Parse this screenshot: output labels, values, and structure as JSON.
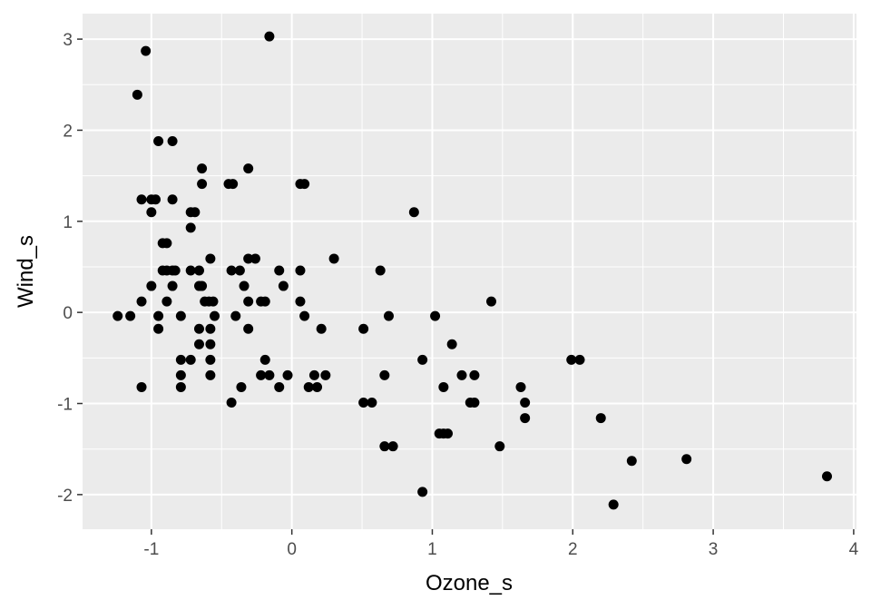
{
  "chart_data": {
    "type": "scatter",
    "title": "",
    "xlabel": "Ozone_s",
    "ylabel": "Wind_s",
    "xlim": [
      -1.49,
      4.02
    ],
    "ylim": [
      -2.38,
      3.28
    ],
    "x_ticks": [
      -1,
      0,
      1,
      2,
      3,
      4
    ],
    "x_tick_labels": [
      "-1",
      "0",
      "1",
      "2",
      "3",
      "4"
    ],
    "y_ticks": [
      -2,
      -1,
      0,
      1,
      2,
      3
    ],
    "y_tick_labels": [
      "-2",
      "-1",
      "0",
      "1",
      "2",
      "3"
    ],
    "grid": true,
    "legend": "none",
    "colors": {
      "panel": "#ebebeb",
      "grid": "#ffffff",
      "point": "#000000"
    },
    "points": [
      [
        -1.24,
        -0.04
      ],
      [
        -1.15,
        -0.04
      ],
      [
        -1.1,
        2.39
      ],
      [
        -1.04,
        2.87
      ],
      [
        -1.07,
        1.24
      ],
      [
        -1.0,
        1.24
      ],
      [
        -0.97,
        1.24
      ],
      [
        -1.0,
        1.1
      ],
      [
        -1.07,
        0.12
      ],
      [
        -1.0,
        0.29
      ],
      [
        -1.07,
        -0.82
      ],
      [
        -0.95,
        1.88
      ],
      [
        -0.85,
        1.88
      ],
      [
        -0.92,
        0.76
      ],
      [
        -0.89,
        0.76
      ],
      [
        -0.92,
        0.46
      ],
      [
        -0.89,
        0.46
      ],
      [
        -0.85,
        0.46
      ],
      [
        -0.83,
        0.46
      ],
      [
        -0.89,
        0.12
      ],
      [
        -0.85,
        0.29
      ],
      [
        -0.95,
        -0.04
      ],
      [
        -0.95,
        -0.18
      ],
      [
        -0.85,
        1.24
      ],
      [
        -0.79,
        -0.04
      ],
      [
        -0.79,
        -0.52
      ],
      [
        -0.79,
        -0.69
      ],
      [
        -0.79,
        -0.82
      ],
      [
        -0.72,
        1.1
      ],
      [
        -0.69,
        1.1
      ],
      [
        -0.72,
        0.93
      ],
      [
        -0.72,
        0.46
      ],
      [
        -0.66,
        0.46
      ],
      [
        -0.66,
        0.29
      ],
      [
        -0.64,
        0.29
      ],
      [
        -0.66,
        -0.18
      ],
      [
        -0.66,
        -0.35
      ],
      [
        -0.72,
        -0.52
      ],
      [
        -0.64,
        1.58
      ],
      [
        -0.64,
        1.41
      ],
      [
        -0.62,
        0.12
      ],
      [
        -0.59,
        0.12
      ],
      [
        -0.56,
        0.12
      ],
      [
        -0.58,
        0.59
      ],
      [
        -0.58,
        -0.18
      ],
      [
        -0.55,
        -0.04
      ],
      [
        -0.58,
        -0.35
      ],
      [
        -0.58,
        -0.52
      ],
      [
        -0.58,
        -0.69
      ],
      [
        -0.45,
        1.41
      ],
      [
        -0.42,
        1.41
      ],
      [
        -0.43,
        0.46
      ],
      [
        -0.37,
        0.46
      ],
      [
        -0.4,
        -0.04
      ],
      [
        -0.36,
        -0.82
      ],
      [
        -0.43,
        -0.99
      ],
      [
        -0.31,
        1.58
      ],
      [
        -0.31,
        0.59
      ],
      [
        -0.26,
        0.59
      ],
      [
        -0.34,
        0.29
      ],
      [
        -0.31,
        0.12
      ],
      [
        -0.31,
        -0.18
      ],
      [
        -0.22,
        0.12
      ],
      [
        -0.19,
        0.12
      ],
      [
        -0.19,
        -0.52
      ],
      [
        -0.22,
        -0.69
      ],
      [
        -0.16,
        -0.69
      ],
      [
        -0.16,
        3.03
      ],
      [
        -0.09,
        0.46
      ],
      [
        -0.06,
        0.29
      ],
      [
        -0.09,
        -0.82
      ],
      [
        -0.03,
        -0.69
      ],
      [
        0.06,
        1.41
      ],
      [
        0.09,
        1.41
      ],
      [
        0.06,
        0.46
      ],
      [
        0.06,
        0.12
      ],
      [
        0.09,
        -0.04
      ],
      [
        0.12,
        -0.82
      ],
      [
        0.16,
        -0.69
      ],
      [
        0.18,
        -0.82
      ],
      [
        0.21,
        -0.18
      ],
      [
        0.24,
        -0.69
      ],
      [
        0.3,
        0.59
      ],
      [
        0.51,
        -0.18
      ],
      [
        0.51,
        -0.99
      ],
      [
        0.57,
        -0.99
      ],
      [
        0.63,
        0.46
      ],
      [
        0.66,
        -0.69
      ],
      [
        0.66,
        -1.47
      ],
      [
        0.72,
        -1.47
      ],
      [
        0.69,
        -0.04
      ],
      [
        0.87,
        1.1
      ],
      [
        0.93,
        -0.52
      ],
      [
        0.93,
        -1.97
      ],
      [
        1.02,
        -0.04
      ],
      [
        1.05,
        -1.33
      ],
      [
        1.08,
        -1.33
      ],
      [
        1.11,
        -1.33
      ],
      [
        1.08,
        -0.82
      ],
      [
        1.14,
        -0.35
      ],
      [
        1.21,
        -0.69
      ],
      [
        1.27,
        -0.99
      ],
      [
        1.3,
        -0.99
      ],
      [
        1.3,
        -0.69
      ],
      [
        1.42,
        0.12
      ],
      [
        1.48,
        -1.47
      ],
      [
        1.63,
        -0.82
      ],
      [
        1.66,
        -0.99
      ],
      [
        1.66,
        -1.16
      ],
      [
        1.99,
        -0.52
      ],
      [
        2.05,
        -0.52
      ],
      [
        2.2,
        -1.16
      ],
      [
        2.29,
        -2.11
      ],
      [
        2.42,
        -1.63
      ],
      [
        2.81,
        -1.61
      ],
      [
        3.81,
        -1.8
      ]
    ]
  }
}
